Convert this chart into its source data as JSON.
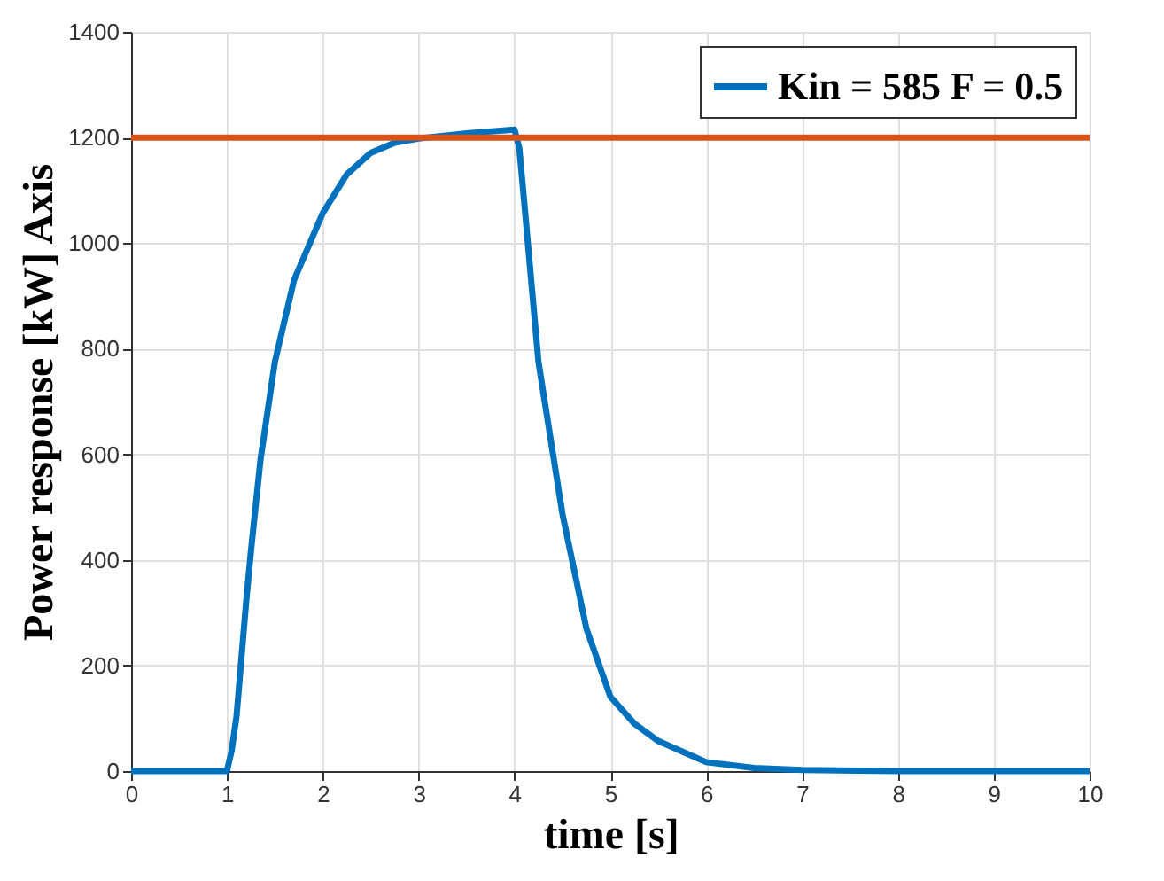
{
  "chart_data": {
    "type": "line",
    "xlabel": "time [s]",
    "ylabel": "Power response [kW] Axis",
    "series": [
      {
        "name": "Kin = 585 F = 0.5",
        "color": "#0072bd",
        "x": [
          0,
          1,
          1.05,
          1.1,
          1.2,
          1.25,
          1.35,
          1.5,
          1.7,
          2,
          2.25,
          2.5,
          2.75,
          3,
          3.5,
          4,
          4.05,
          4.1,
          4.25,
          4.5,
          4.75,
          5,
          5.25,
          5.5,
          6,
          6.5,
          7,
          8,
          9,
          10
        ],
        "values": [
          0,
          0,
          40,
          104,
          320,
          416,
          590,
          775,
          930,
          1057,
          1130,
          1171,
          1190,
          1198,
          1208,
          1215,
          1180,
          1080,
          775,
          487,
          270,
          141,
          90,
          57,
          17,
          6,
          2,
          0,
          0,
          0
        ]
      }
    ],
    "ref_lines": [
      {
        "axis": "y",
        "value": 1200,
        "color": "#d95319"
      }
    ],
    "xlim": [
      0,
      10
    ],
    "xticks": [
      0,
      1,
      2,
      3,
      4,
      5,
      6,
      7,
      8,
      9,
      10
    ],
    "ylim": [
      0,
      1400
    ],
    "yticks": [
      0,
      200,
      400,
      600,
      800,
      1000,
      1200,
      1400
    ],
    "grid": true,
    "legend": "top right",
    "line_style": "solid",
    "marker": "none"
  }
}
